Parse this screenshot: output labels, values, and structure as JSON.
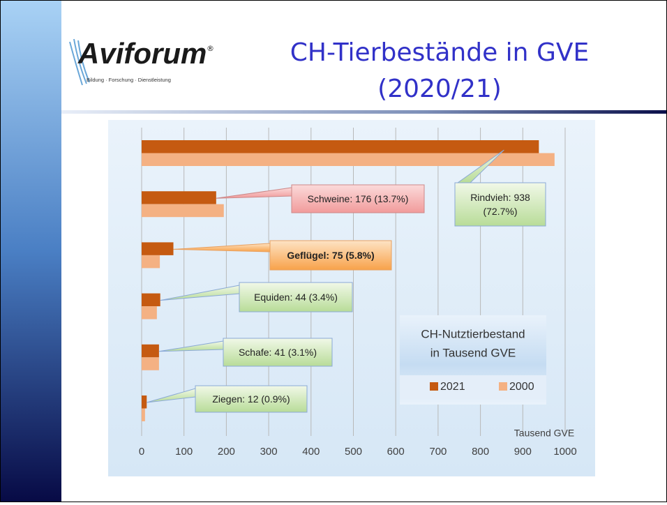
{
  "slide": {
    "title": "CH-Tierbestände in GVE",
    "subtitle": "(2020/21)",
    "logo": {
      "name": "Aviforum",
      "mark": "®",
      "tagline": "Bildung · Forschung · Dienstleistung"
    }
  },
  "chart_data": {
    "type": "bar",
    "orientation": "horizontal",
    "categories": [
      null,
      null,
      null,
      null,
      null,
      null
    ],
    "series": [
      {
        "name": "2021",
        "color": "#c55a11",
        "values": [
          938,
          176,
          75,
          44,
          41,
          12
        ],
        "value_labels": [
          "Rindvieh: 938 (72.7%)",
          "Schweine: 176 (13.7%)",
          "Geflügel: 75 (5.8%)",
          "Equiden: 44 (3.4%)",
          "Schafe: 41 (3.1%)",
          "Ziegen: 12 (0.9%)"
        ]
      },
      {
        "name": "2000",
        "color": "#f4b183",
        "values": [
          975,
          194,
          43,
          36,
          41,
          8
        ]
      }
    ],
    "xlim": [
      0,
      1000
    ],
    "xticks": [
      0,
      100,
      200,
      300,
      400,
      500,
      600,
      700,
      800,
      900,
      1000
    ],
    "xlabel": "Tausend GVE",
    "grid": true,
    "legend_title": [
      "CH-Nutztierbestand",
      "in Tausend GVE"
    ]
  }
}
